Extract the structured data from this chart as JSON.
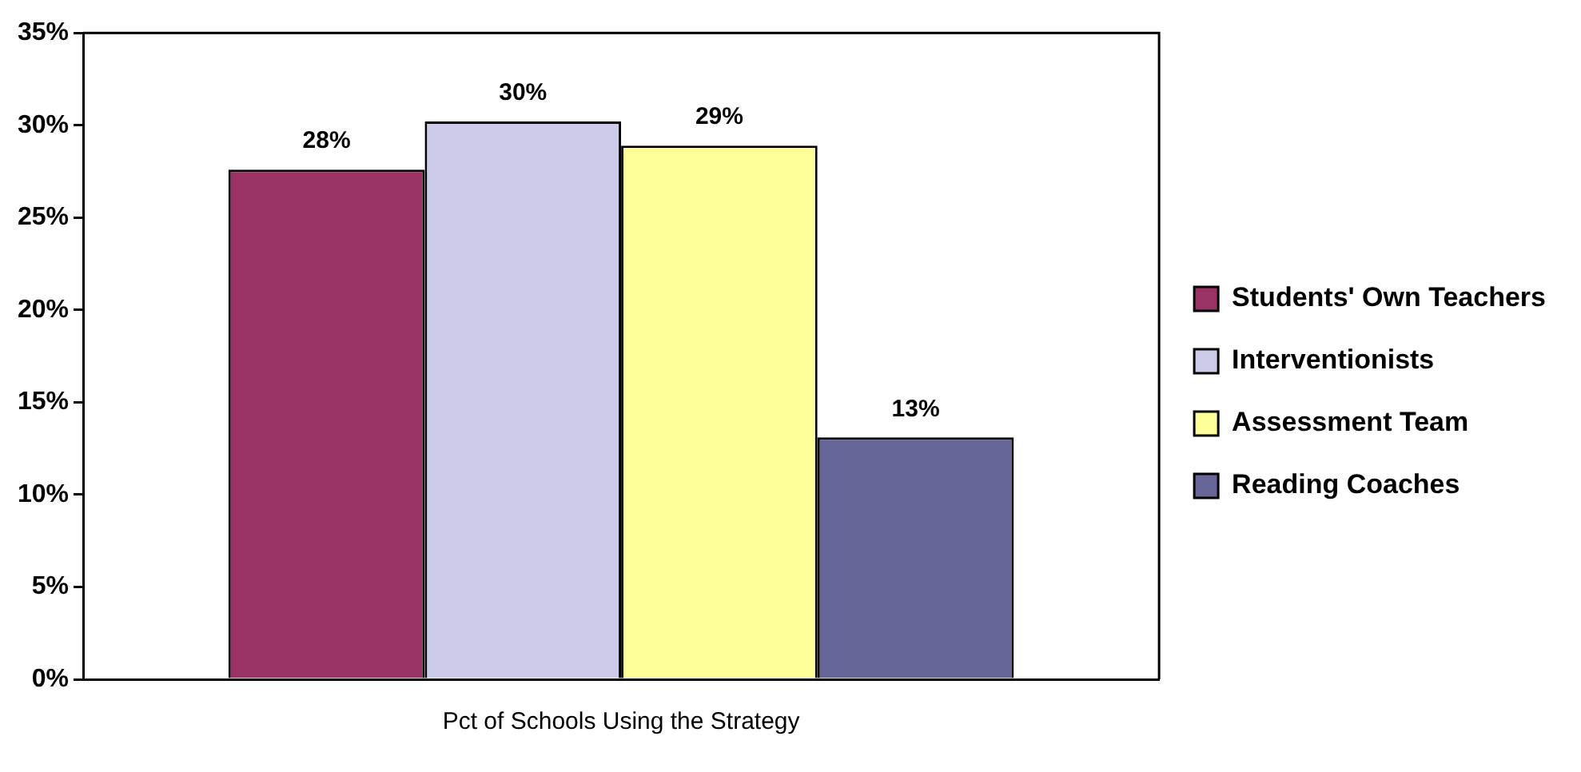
{
  "chart_data": {
    "type": "bar",
    "categories": [
      "Pct of Schools Using the Strategy"
    ],
    "series": [
      {
        "name": "Students' Own Teachers",
        "color": "#993366",
        "values": [
          27.6
        ],
        "value_labels": [
          "28%"
        ]
      },
      {
        "name": "Interventionists",
        "color": "#ccccea",
        "values": [
          30.2
        ],
        "value_labels": [
          "30%"
        ]
      },
      {
        "name": "Assessment Team",
        "color": "#ffff99",
        "values": [
          28.9
        ],
        "value_labels": [
          "29%"
        ]
      },
      {
        "name": "Reading Coaches",
        "color": "#666699",
        "values": [
          13.1
        ],
        "value_labels": [
          "13%"
        ]
      }
    ],
    "ylim": [
      0,
      35
    ],
    "yticks": [
      {
        "value": 0,
        "label": "0%"
      },
      {
        "value": 5,
        "label": "5%"
      },
      {
        "value": 10,
        "label": "10%"
      },
      {
        "value": 15,
        "label": "15%"
      },
      {
        "value": 20,
        "label": "20%"
      },
      {
        "value": 25,
        "label": "25%"
      },
      {
        "value": 30,
        "label": "30%"
      },
      {
        "value": 35,
        "label": "35%"
      }
    ],
    "grid": false,
    "legend": "right"
  }
}
